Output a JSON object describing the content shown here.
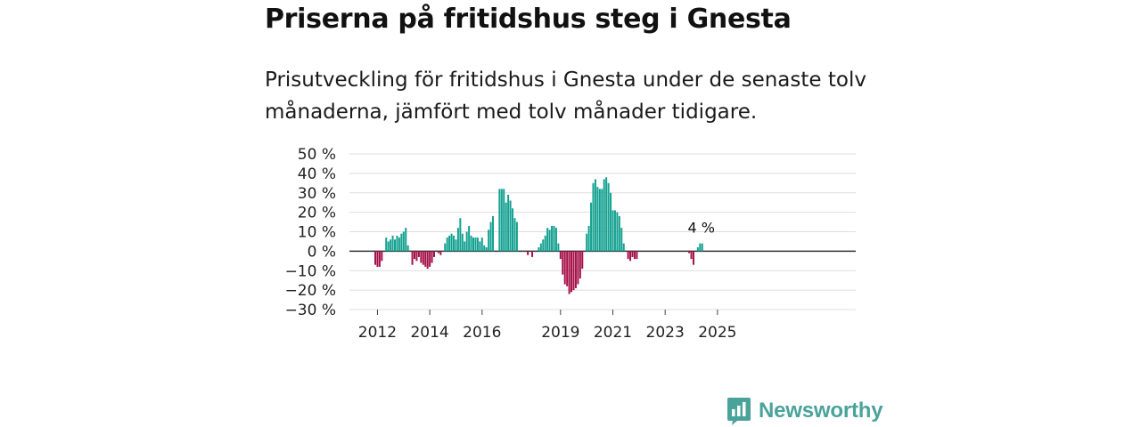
{
  "header": {
    "title": "Priserna på fritidshus steg i Gnesta",
    "subtitle": "Prisutveckling för fritidshus i Gnesta under de senaste tolv månaderna, jämfört med tolv månader tidigare."
  },
  "brand": {
    "name": "Newsworthy"
  },
  "colors": {
    "positive": "#14a191",
    "negative": "#a5114a",
    "grid": "#dddddd",
    "zero_line": "#333333",
    "brand": "#4aa39b"
  },
  "chart_data": {
    "type": "bar",
    "title": "Priserna på fritidshus steg i Gnesta",
    "xlabel": "",
    "ylabel": "",
    "ylim": [
      -30,
      50
    ],
    "yticks": [
      50,
      40,
      30,
      20,
      10,
      0,
      -10,
      -20,
      -30
    ],
    "ytick_labels": [
      "50 %",
      "40 %",
      "30 %",
      "20 %",
      "10 %",
      "0 %",
      "−10 %",
      "−20 %",
      "−30 %"
    ],
    "xtick_labels": [
      "2012",
      "2014",
      "2016",
      "2019",
      "2021",
      "2023",
      "2025"
    ],
    "xtick_years": [
      2012,
      2014,
      2016,
      2019,
      2021,
      2023,
      2025
    ],
    "x_start": "2011-12",
    "annotation": {
      "text": "4 %"
    },
    "series": [
      {
        "name": "Prisutveckling",
        "values": [
          -7,
          -8,
          -8,
          -5,
          null,
          7,
          5,
          6,
          8,
          6,
          8,
          7,
          9,
          10,
          12,
          3,
          null,
          -7,
          -4,
          -5,
          -3,
          -6,
          -7,
          -8,
          -9,
          -8,
          -6,
          -3,
          null,
          -1,
          -2,
          null,
          4,
          7,
          8,
          9,
          8,
          6,
          12,
          17,
          9,
          5,
          10,
          13,
          8,
          7,
          7,
          7,
          5,
          7,
          3,
          2,
          11,
          15,
          18,
          null,
          null,
          32,
          32,
          32,
          25,
          29,
          26,
          22,
          17,
          15,
          null,
          null,
          null,
          null,
          -2,
          null,
          -3,
          null,
          null,
          2,
          4,
          6,
          8,
          12,
          11,
          13,
          13,
          12,
          4,
          -4,
          -12,
          -17,
          -18,
          -22,
          -21,
          -20,
          -19,
          -17,
          -14,
          -9,
          null,
          9,
          13,
          25,
          35,
          37,
          33,
          32,
          32,
          37,
          38,
          35,
          30,
          21,
          21,
          20,
          18,
          12,
          4,
          null,
          -4,
          -5,
          -3,
          -4,
          -4,
          null,
          null,
          null,
          null,
          null,
          null,
          null,
          null,
          null,
          null,
          null,
          null,
          null,
          null,
          null,
          null,
          null,
          null,
          null,
          null,
          null,
          null,
          null,
          -1,
          -4,
          -7,
          null,
          2,
          4,
          4
        ]
      }
    ]
  }
}
